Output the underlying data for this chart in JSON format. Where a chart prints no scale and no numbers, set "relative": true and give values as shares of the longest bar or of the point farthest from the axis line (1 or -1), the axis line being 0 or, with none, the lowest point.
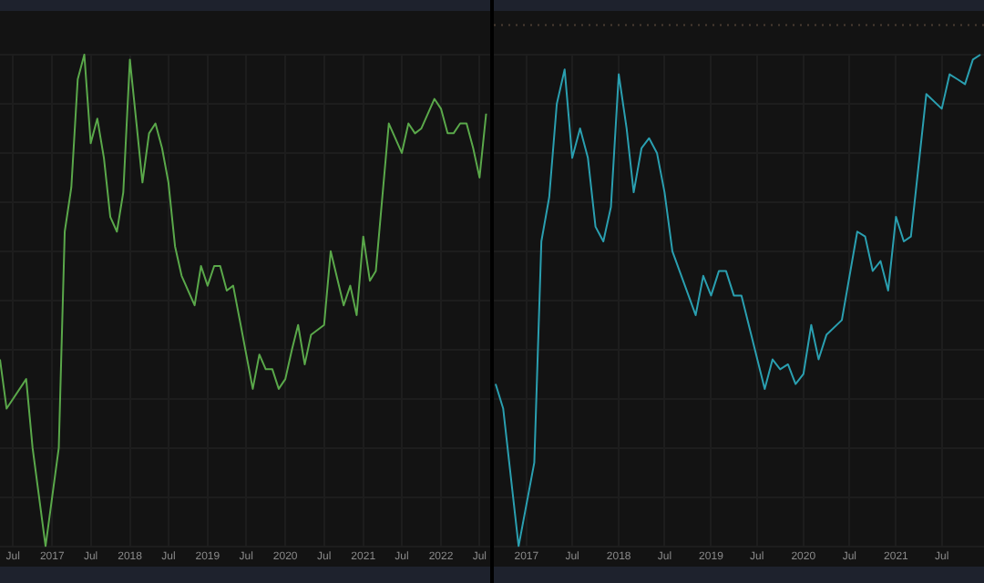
{
  "chart_data": [
    {
      "type": "line",
      "relative": true,
      "grid": true,
      "legend": false,
      "marker": "none",
      "line_style": "solid",
      "xlim": [
        "2016-05-01",
        "2022-08-20"
      ],
      "xticks": [
        {
          "value": "2016-07",
          "label": "Jul"
        },
        "2017",
        {
          "value": "2017-07",
          "label": "Jul"
        },
        "2018",
        {
          "value": "2018-07",
          "label": "Jul"
        },
        "2019",
        {
          "value": "2019-07",
          "label": "Jul"
        },
        "2020",
        {
          "value": "2020-07",
          "label": "Jul"
        },
        "2021",
        {
          "value": "2021-07",
          "label": "Jul"
        },
        "2022",
        {
          "value": "2022-07",
          "label": "Jul"
        }
      ],
      "x": [
        "2016-05",
        "2016-06",
        "2016-09",
        "2016-10",
        "2016-12",
        "2017-02",
        "2017-03",
        "2017-04",
        "2017-05",
        "2017-06",
        "2017-07",
        "2017-08",
        "2017-09",
        "2017-10",
        "2017-11",
        "2017-12",
        "2018-01",
        "2018-02",
        "2018-03",
        "2018-04",
        "2018-05",
        "2018-06",
        "2018-07",
        "2018-08",
        "2018-09",
        "2018-11",
        "2018-12",
        "2019-01",
        "2019-02",
        "2019-03",
        "2019-04",
        "2019-05",
        "2019-06",
        "2019-08",
        "2019-09",
        "2019-10",
        "2019-11",
        "2019-12",
        "2020-01",
        "2020-02",
        "2020-03",
        "2020-04",
        "2020-05",
        "2020-07",
        "2020-08",
        "2020-10",
        "2020-11",
        "2020-12",
        "2021-01",
        "2021-02",
        "2021-03",
        "2021-05",
        "2021-07",
        "2021-08",
        "2021-09",
        "2021-10",
        "2021-12",
        "2022-01",
        "2022-02",
        "2022-03",
        "2022-04",
        "2022-05",
        "2022-06",
        "2022-07",
        "2022-08"
      ],
      "series": [
        {
          "color": "#5aa84a",
          "values": [
            0.38,
            0.28,
            0.34,
            0.2,
            0,
            0.2,
            0.64,
            0.73,
            0.95,
            1,
            0.82,
            0.87,
            0.79,
            0.67,
            0.64,
            0.72,
            0.99,
            0.86,
            0.74,
            0.84,
            0.86,
            0.81,
            0.74,
            0.61,
            0.55,
            0.49,
            0.57,
            0.53,
            0.57,
            0.57,
            0.52,
            0.53,
            0.46,
            0.32,
            0.39,
            0.36,
            0.36,
            0.32,
            0.34,
            0.4,
            0.45,
            0.37,
            0.43,
            0.45,
            0.6,
            0.49,
            0.53,
            0.47,
            0.63,
            0.54,
            0.56,
            0.86,
            0.8,
            0.86,
            0.84,
            0.85,
            0.91,
            0.89,
            0.84,
            0.84,
            0.86,
            0.86,
            0.81,
            0.75,
            0.88
          ]
        }
      ]
    },
    {
      "type": "line",
      "relative": true,
      "grid": true,
      "legend": false,
      "marker": "none",
      "line_style": "solid",
      "xlim": [
        "2016-08-25",
        "2021-12-15"
      ],
      "xticks": [
        "2017",
        {
          "value": "2017-07",
          "label": "Jul"
        },
        "2018",
        {
          "value": "2018-07",
          "label": "Jul"
        },
        "2019",
        {
          "value": "2019-07",
          "label": "Jul"
        },
        "2020",
        {
          "value": "2020-07",
          "label": "Jul"
        },
        "2021",
        {
          "value": "2021-07",
          "label": "Jul"
        }
      ],
      "x": [
        "2016-09",
        "2016-10",
        "2016-12",
        "2017-02",
        "2017-03",
        "2017-04",
        "2017-05",
        "2017-06",
        "2017-07",
        "2017-08",
        "2017-09",
        "2017-10",
        "2017-11",
        "2017-12",
        "2018-01",
        "2018-02",
        "2018-03",
        "2018-04",
        "2018-05",
        "2018-06",
        "2018-07",
        "2018-08",
        "2018-11",
        "2018-12",
        "2019-01",
        "2019-02",
        "2019-03",
        "2019-04",
        "2019-05",
        "2019-08",
        "2019-09",
        "2019-10",
        "2019-11",
        "2019-12",
        "2020-01",
        "2020-02",
        "2020-03",
        "2020-04",
        "2020-06",
        "2020-08",
        "2020-09",
        "2020-10",
        "2020-11",
        "2020-12",
        "2021-01",
        "2021-02",
        "2021-03",
        "2021-05",
        "2021-07",
        "2021-08",
        "2021-09",
        "2021-10",
        "2021-11",
        "2021-12"
      ],
      "series": [
        {
          "color": "#2a9fb0",
          "values": [
            0.33,
            0.28,
            0,
            0.17,
            0.62,
            0.71,
            0.9,
            0.97,
            0.79,
            0.85,
            0.79,
            0.65,
            0.62,
            0.69,
            0.96,
            0.85,
            0.72,
            0.81,
            0.83,
            0.8,
            0.72,
            0.6,
            0.47,
            0.55,
            0.51,
            0.56,
            0.56,
            0.51,
            0.51,
            0.32,
            0.38,
            0.36,
            0.37,
            0.33,
            0.35,
            0.45,
            0.38,
            0.43,
            0.46,
            0.64,
            0.63,
            0.56,
            0.58,
            0.52,
            0.67,
            0.62,
            0.63,
            0.92,
            0.89,
            0.96,
            0.95,
            0.94,
            0.99,
            1
          ]
        }
      ],
      "ref_lines": [
        {
          "axis": "y",
          "value": 1.06,
          "color": "#4a3c32",
          "line_style": "dotted"
        }
      ]
    }
  ]
}
